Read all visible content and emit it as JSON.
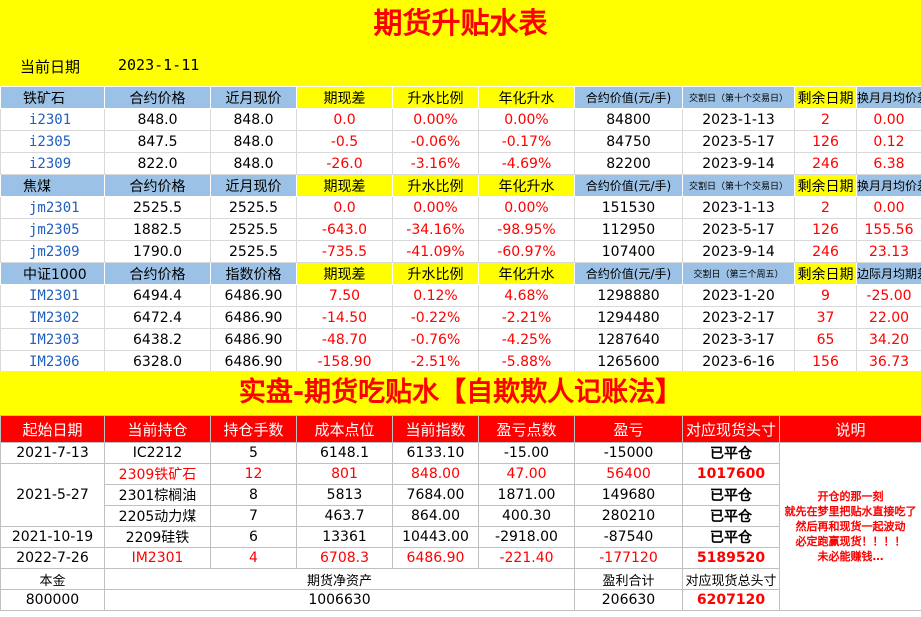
{
  "title": "期货升贴水表",
  "current_date": {
    "label": "当前日期",
    "value": "2023-1-11"
  },
  "sections": [
    {
      "header": [
        "铁矿石",
        "合约价格",
        "近月现价",
        "期现差",
        "升水比例",
        "年化升水",
        "合约价值(元/手)",
        "交割日（第十个交易日）",
        "剩余日期",
        "换月月均价差"
      ],
      "rows": [
        [
          "i2301",
          "848.0",
          "848.0",
          "0.0",
          "0.00%",
          "0.00%",
          "84800",
          "2023-1-13",
          "2",
          "0.00"
        ],
        [
          "i2305",
          "847.5",
          "848.0",
          "-0.5",
          "-0.06%",
          "-0.17%",
          "84750",
          "2023-5-17",
          "126",
          "0.12"
        ],
        [
          "i2309",
          "822.0",
          "848.0",
          "-26.0",
          "-3.16%",
          "-4.69%",
          "82200",
          "2023-9-14",
          "246",
          "6.38"
        ]
      ]
    },
    {
      "header": [
        "焦煤",
        "合约价格",
        "近月现价",
        "期现差",
        "升水比例",
        "年化升水",
        "合约价值(元/手)",
        "交割日（第十个交易日）",
        "剩余日期",
        "换月月均价差"
      ],
      "rows": [
        [
          "jm2301",
          "2525.5",
          "2525.5",
          "0.0",
          "0.00%",
          "0.00%",
          "151530",
          "2023-1-13",
          "2",
          "0.00"
        ],
        [
          "jm2305",
          "1882.5",
          "2525.5",
          "-643.0",
          "-34.16%",
          "-98.95%",
          "112950",
          "2023-5-17",
          "126",
          "155.56"
        ],
        [
          "jm2309",
          "1790.0",
          "2525.5",
          "-735.5",
          "-41.09%",
          "-60.97%",
          "107400",
          "2023-9-14",
          "246",
          "23.13"
        ]
      ]
    },
    {
      "header": [
        "中证1000",
        "合约价格",
        "指数价格",
        "期现差",
        "升水比例",
        "年化升水",
        "合约价值(元/手)",
        "交割日（第三个周五）",
        "剩余日期",
        "边际月均期差"
      ],
      "rows": [
        [
          "IM2301",
          "6494.4",
          "6486.90",
          "7.50",
          "0.12%",
          "4.68%",
          "1298880",
          "2023-1-20",
          "9",
          "-25.00"
        ],
        [
          "IM2302",
          "6472.4",
          "6486.90",
          "-14.50",
          "-0.22%",
          "-2.21%",
          "1294480",
          "2023-2-17",
          "37",
          "22.00"
        ],
        [
          "IM2303",
          "6438.2",
          "6486.90",
          "-48.70",
          "-0.76%",
          "-4.25%",
          "1287640",
          "2023-3-17",
          "65",
          "34.20"
        ],
        [
          "IM2306",
          "6328.0",
          "6486.90",
          "-158.90",
          "-2.51%",
          "-5.88%",
          "1265600",
          "2023-6-16",
          "156",
          "36.73"
        ]
      ]
    }
  ],
  "account_title": "实盘-期货吃贴水【自欺欺人记账法】",
  "account_header": [
    "起始日期",
    "当前持仓",
    "持仓手数",
    "成本点位",
    "当前指数",
    "盈亏点数",
    "盈亏",
    "对应现货头寸",
    "说明"
  ],
  "account_rows": [
    [
      "2021-7-13",
      "IC2212",
      "5",
      "6148.1",
      "6133.10",
      "-15.00",
      "-15000",
      "已平仓"
    ],
    [
      "2021-5-27",
      "2309铁矿石",
      "12",
      "801",
      "848.00",
      "47.00",
      "56400",
      "1017600"
    ],
    [
      "",
      "2301棕榈油",
      "8",
      "5813",
      "7684.00",
      "1871.00",
      "149680",
      "已平仓"
    ],
    [
      "",
      "2205动力煤",
      "7",
      "463.7",
      "864.00",
      "400.30",
      "280210",
      "已平仓"
    ],
    [
      "2021-10-19",
      "2209硅铁",
      "6",
      "13361",
      "10443.00",
      "-2918.00",
      "-87540",
      "已平仓"
    ],
    [
      "2022-7-26",
      "IM2301",
      "4",
      "6708.3",
      "6486.90",
      "-221.40",
      "-177120",
      "5189520"
    ]
  ],
  "note_lines": [
    "开仓的那一刻",
    "就先在梦里把贴水直接吃了",
    "然后再和现货一起波动",
    "必定跑赢现货！！！！",
    "未必能赚钱…"
  ],
  "summary": {
    "principal_label": "本金",
    "principal_value": "800000",
    "net_assets_label": "期货净资产",
    "net_assets_value": "1006630",
    "profit_label": "盈利合计",
    "profit_value": "206630",
    "spot_total_label": "对应现货总头寸",
    "spot_total_value": "6207120"
  },
  "colors": {
    "yellow": "#ffff00",
    "header_blue": "#9bc2e6",
    "red": "#ff0000",
    "code_blue": "#1f5fbf"
  }
}
